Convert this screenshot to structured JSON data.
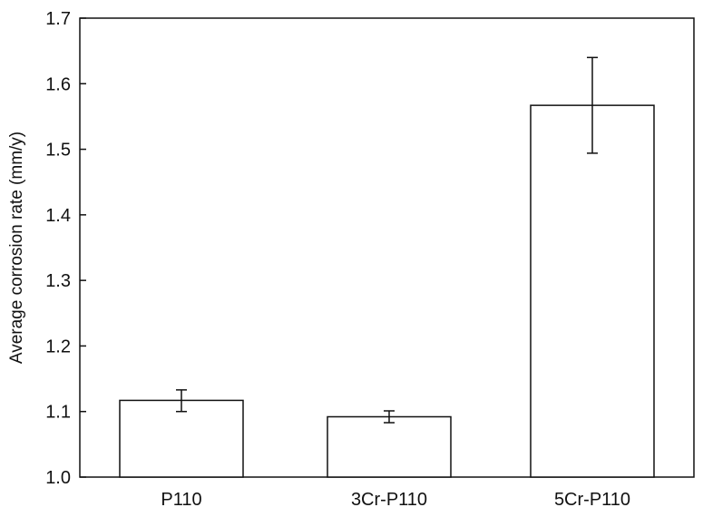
{
  "chart_data": {
    "type": "bar",
    "title": "",
    "xlabel": "",
    "ylabel": "Average corrosion rate (mm/y)",
    "categories": [
      "P110",
      "3Cr-P110",
      "5Cr-P110"
    ],
    "values": [
      1.117,
      1.092,
      1.567
    ],
    "errors": [
      {
        "low": 1.1,
        "high": 1.133
      },
      {
        "low": 1.083,
        "high": 1.101
      },
      {
        "low": 1.494,
        "high": 1.64
      }
    ],
    "ylim": [
      1.0,
      1.7
    ],
    "yticks": [
      "1.0",
      "1.1",
      "1.2",
      "1.3",
      "1.4",
      "1.5",
      "1.6",
      "1.7"
    ],
    "grid": false,
    "legend": "none",
    "colors": {
      "bar_fill": "#ffffff",
      "bar_stroke": "#111111",
      "axis": "#111111",
      "text": "#111111"
    }
  }
}
